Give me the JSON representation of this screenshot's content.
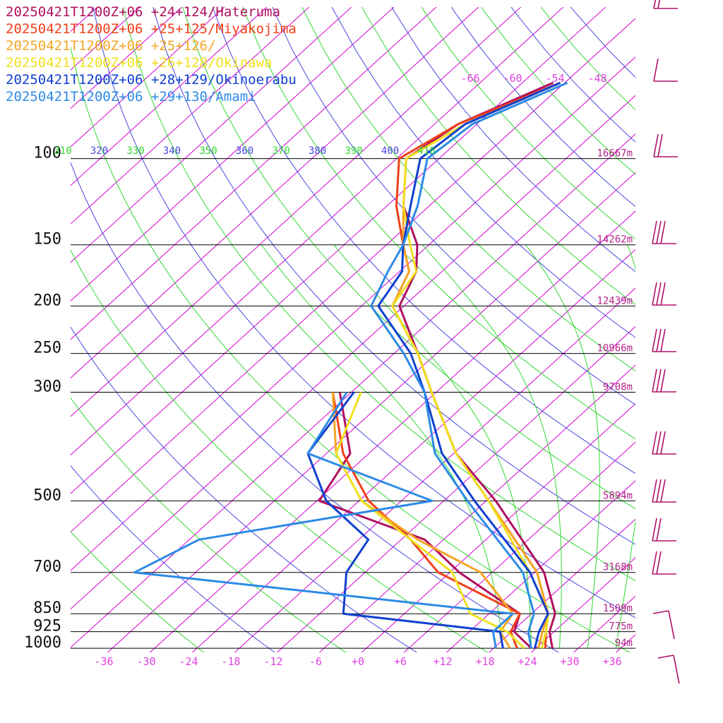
{
  "chart_data": {
    "type": "line",
    "diagram": "skew-T log-p",
    "legend": [
      {
        "label": "20250421T1200Z+06 +24+124/Hateruma",
        "color": "#b0105f"
      },
      {
        "label": "20250421T1200Z+06 +25+125/Miyakojima",
        "color": "#f0401a"
      },
      {
        "label": "20250421T1200Z+06 +25+126/",
        "color": "#f5a623"
      },
      {
        "label": "20250421T1200Z+06 +26+128/Okinawa",
        "color": "#f0e020"
      },
      {
        "label": "20250421T1200Z+06 +28+129/Okinoerabu",
        "color": "#1040d0"
      },
      {
        "label": "20250421T1200Z+06 +29+130/Amami",
        "color": "#2d8ae6"
      }
    ],
    "pressure_levels": [
      {
        "p": 100,
        "label": "100",
        "height": "16667m"
      },
      {
        "p": 150,
        "label": "150",
        "height": "14262m"
      },
      {
        "p": 200,
        "label": "200",
        "height": "12439m"
      },
      {
        "p": 250,
        "label": "250",
        "height": "10966m"
      },
      {
        "p": 300,
        "label": "300",
        "height": "9708m"
      },
      {
        "p": 500,
        "label": "500",
        "height": "5894m"
      },
      {
        "p": 700,
        "label": "700",
        "height": "3168m"
      },
      {
        "p": 850,
        "label": "850",
        "height": "1509m"
      },
      {
        "p": 925,
        "label": "925",
        "height": "775m"
      },
      {
        "p": 1000,
        "label": "1000",
        "height": "94m"
      }
    ],
    "temperature_ticks": [
      "-36",
      "-30",
      "-24",
      "-18",
      "-12",
      "-6",
      "+0",
      "+6",
      "+12",
      "+18",
      "+24",
      "+30",
      "+36"
    ],
    "top_temperature_labels": [
      "-66",
      "-60",
      "-54",
      "-48"
    ],
    "theta_labels": [
      "310",
      "320",
      "330",
      "340",
      "350",
      "360",
      "370",
      "380",
      "390",
      "400",
      "410"
    ],
    "series": [
      {
        "color": "#b0105f",
        "temperature": [
          [
            1000,
            27
          ],
          [
            925,
            24
          ],
          [
            850,
            22
          ],
          [
            700,
            14
          ],
          [
            500,
            -4
          ],
          [
            400,
            -17
          ],
          [
            300,
            -30
          ],
          [
            250,
            -38
          ],
          [
            200,
            -48
          ],
          [
            170,
            -51
          ],
          [
            150,
            -55
          ],
          [
            125,
            -63
          ],
          [
            100,
            -70
          ],
          [
            85,
            -68
          ],
          [
            70,
            -61
          ]
        ],
        "dewpoint": [
          [
            1000,
            24
          ],
          [
            925,
            19
          ],
          [
            850,
            17
          ],
          [
            700,
            2
          ],
          [
            600,
            -8
          ],
          [
            500,
            -29
          ],
          [
            400,
            -32
          ],
          [
            300,
            -43
          ]
        ]
      },
      {
        "color": "#f0401a",
        "temperature": [
          [
            1000,
            26
          ],
          [
            925,
            23.5
          ],
          [
            850,
            21
          ],
          [
            700,
            13
          ],
          [
            500,
            -5
          ],
          [
            400,
            -17
          ],
          [
            300,
            -30
          ],
          [
            250,
            -38
          ],
          [
            200,
            -49
          ],
          [
            170,
            -52
          ],
          [
            150,
            -57
          ],
          [
            125,
            -64
          ],
          [
            100,
            -71
          ],
          [
            85,
            -68
          ],
          [
            70,
            -60
          ]
        ],
        "dewpoint": [
          [
            1000,
            22
          ],
          [
            925,
            18.5
          ],
          [
            850,
            17
          ],
          [
            700,
            -1
          ],
          [
            600,
            -10
          ],
          [
            500,
            -22
          ],
          [
            400,
            -33
          ],
          [
            300,
            -44
          ]
        ]
      },
      {
        "color": "#f5a623",
        "temperature": [
          [
            1000,
            25
          ],
          [
            925,
            23
          ],
          [
            850,
            21
          ],
          [
            700,
            13
          ],
          [
            500,
            -5
          ],
          [
            400,
            -17
          ],
          [
            300,
            -30
          ],
          [
            250,
            -38
          ],
          [
            200,
            -49
          ],
          [
            170,
            -52
          ],
          [
            150,
            -57
          ],
          [
            125,
            -63
          ],
          [
            100,
            -70
          ],
          [
            85,
            -67
          ],
          [
            70,
            -60
          ]
        ],
        "dewpoint": [
          [
            1000,
            21
          ],
          [
            925,
            17
          ],
          [
            850,
            16
          ],
          [
            700,
            5
          ],
          [
            600,
            -9
          ],
          [
            500,
            -23
          ],
          [
            400,
            -34
          ],
          [
            300,
            -44
          ]
        ]
      },
      {
        "color": "#f0e020",
        "temperature": [
          [
            1000,
            25.5
          ],
          [
            925,
            23.5
          ],
          [
            850,
            21
          ],
          [
            700,
            12
          ],
          [
            500,
            -5
          ],
          [
            400,
            -17
          ],
          [
            300,
            -30
          ],
          [
            250,
            -38
          ],
          [
            200,
            -49
          ],
          [
            170,
            -51
          ],
          [
            150,
            -56
          ],
          [
            125,
            -63
          ],
          [
            100,
            -70
          ],
          [
            85,
            -67
          ],
          [
            70,
            -60
          ]
        ],
        "dewpoint": [
          [
            1000,
            23
          ],
          [
            925,
            18
          ],
          [
            850,
            10
          ],
          [
            700,
            1
          ],
          [
            600,
            -10
          ],
          [
            500,
            -23
          ],
          [
            400,
            -34
          ],
          [
            300,
            -40
          ]
        ]
      },
      {
        "color": "#1040d0",
        "temperature": [
          [
            1000,
            24.5
          ],
          [
            925,
            22.5
          ],
          [
            850,
            21
          ],
          [
            700,
            12
          ],
          [
            500,
            -7
          ],
          [
            400,
            -19
          ],
          [
            300,
            -31
          ],
          [
            250,
            -39
          ],
          [
            200,
            -51
          ],
          [
            170,
            -53
          ],
          [
            150,
            -57
          ],
          [
            125,
            -62
          ],
          [
            100,
            -68
          ],
          [
            85,
            -67
          ],
          [
            70,
            -60
          ]
        ],
        "dewpoint": [
          [
            1000,
            20
          ],
          [
            925,
            17
          ],
          [
            850,
            -8
          ],
          [
            700,
            -14
          ],
          [
            600,
            -16
          ],
          [
            500,
            -28
          ],
          [
            400,
            -38
          ],
          [
            300,
            -41
          ]
        ]
      },
      {
        "color": "#2d8ae6",
        "temperature": [
          [
            1000,
            24
          ],
          [
            925,
            21
          ],
          [
            850,
            19
          ],
          [
            700,
            11
          ],
          [
            500,
            -8
          ],
          [
            400,
            -20
          ],
          [
            300,
            -31
          ],
          [
            250,
            -40
          ],
          [
            200,
            -52
          ],
          [
            170,
            -55
          ],
          [
            150,
            -57
          ],
          [
            125,
            -61
          ],
          [
            100,
            -67
          ],
          [
            85,
            -66
          ],
          [
            70,
            -59
          ]
        ],
        "dewpoint": [
          [
            1000,
            19
          ],
          [
            925,
            16
          ],
          [
            850,
            16
          ],
          [
            700,
            -44
          ],
          [
            600,
            -40
          ],
          [
            500,
            -13
          ],
          [
            400,
            -38
          ],
          [
            300,
            -42
          ]
        ]
      }
    ]
  },
  "colors": {
    "isotherm": "#d400d4",
    "dry_adiabat_a": "#4848e0",
    "dry_adiabat_b": "#30d830",
    "moist_adiabat": "#30d830",
    "isobar": "#000000",
    "wind_barb": "#b0106a"
  }
}
